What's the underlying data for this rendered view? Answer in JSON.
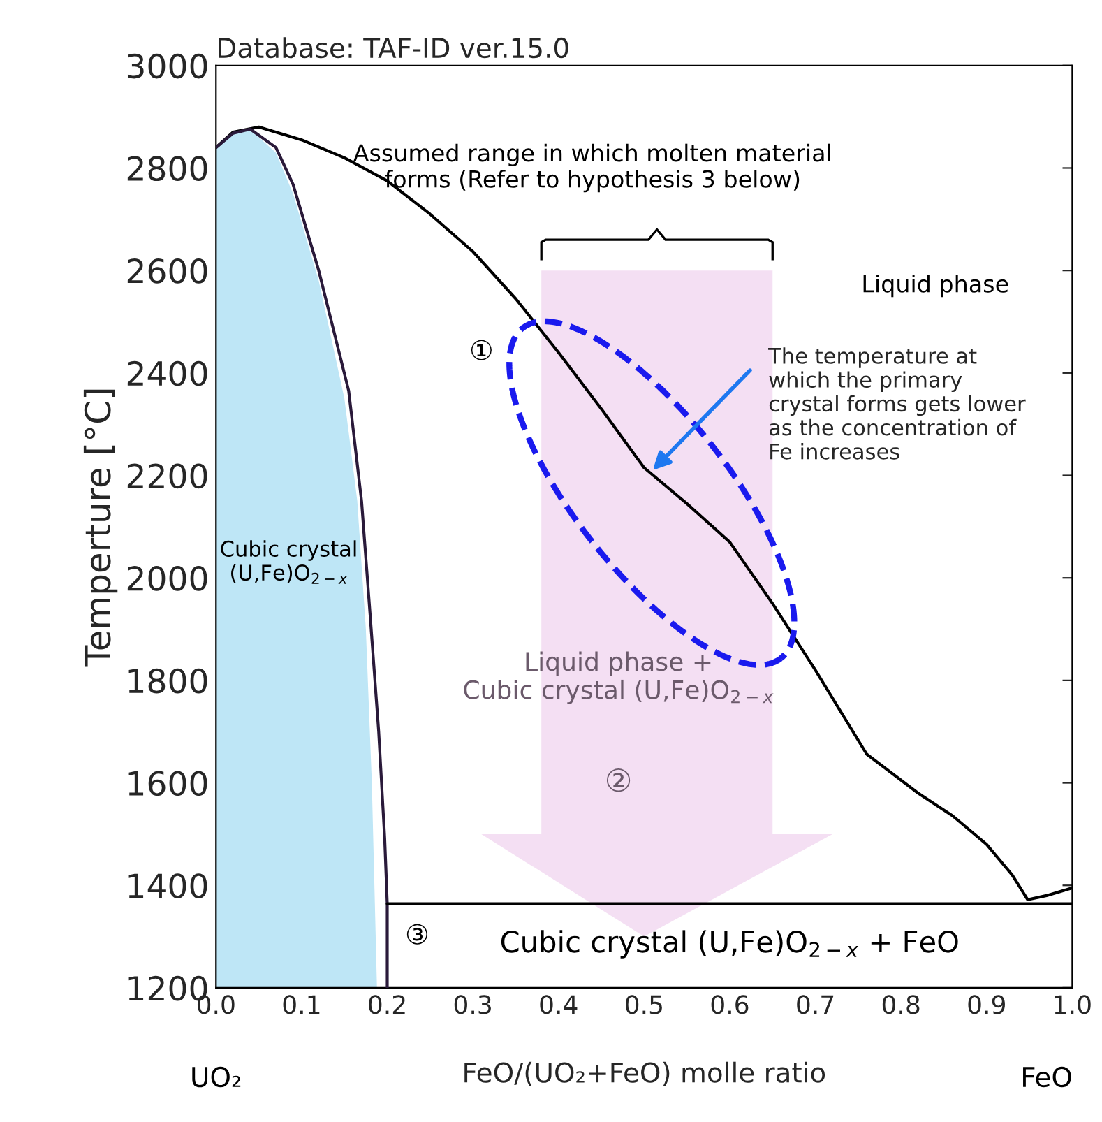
{
  "chart_data": {
    "type": "line",
    "title": "Database: TAF-ID ver.15.0",
    "xlabel": "FeO/(UO₂+FeO) molle ratio",
    "ylabel": "Temperture [°C]",
    "series": [
      {
        "type": "area",
        "color": "#bee6f6",
        "x": [
          0,
          0.02,
          0.04,
          0.07,
          0.09,
          0.12,
          0.15,
          0.165,
          0.175,
          0.182,
          0.188
        ],
        "values": [
          2840,
          2868,
          2875,
          2830,
          2750,
          2580,
          2350,
          2150,
          1900,
          1600,
          1200
        ]
      },
      {
        "color": "#000000",
        "x": [
          0,
          0.02,
          0.05,
          0.1,
          0.15,
          0.2,
          0.25,
          0.3,
          0.35,
          0.4,
          0.45,
          0.5,
          0.55,
          0.6,
          0.65,
          0.7,
          0.76,
          0.82,
          0.86,
          0.9,
          0.93,
          0.948,
          0.97,
          1.0
        ],
        "values": [
          2840,
          2870,
          2880,
          2855,
          2820,
          2775,
          2710,
          2637,
          2545,
          2440,
          2330,
          2215,
          2145,
          2070,
          1950,
          1820,
          1656,
          1580,
          1536,
          1480,
          1420,
          1372,
          1380,
          1395
        ]
      },
      {
        "color": "#2a1a3a",
        "x": [
          0,
          0.02,
          0.04,
          0.07,
          0.09,
          0.12,
          0.155,
          0.17,
          0.18,
          0.19,
          0.197,
          0.2,
          0.2
        ],
        "values": [
          2840,
          2868,
          2876,
          2840,
          2768,
          2600,
          2365,
          2150,
          1928,
          1700,
          1492,
          1364,
          1200
        ]
      },
      {
        "color": "#000000",
        "x": [
          0.2,
          1.0
        ],
        "values": [
          1364,
          1364
        ]
      }
    ],
    "xlim": [
      0,
      1
    ],
    "ylim": [
      1200,
      3000
    ],
    "xticks": [
      {
        "value": 0,
        "label": "0.0"
      },
      0.1,
      0.2,
      0.3,
      0.4,
      0.5,
      0.6,
      0.7,
      0.8,
      0.9,
      {
        "value": 1,
        "label": "1.0"
      }
    ],
    "yticks": [
      1200,
      1400,
      1600,
      1800,
      2000,
      2200,
      2400,
      2600,
      2800,
      3000
    ],
    "annotations": [
      "Cubic crystal\n(U,Fe)O$_{2−x}$",
      "Liquid phase",
      {
        "text": "The temperature at\nwhich the primary\ncrystal forms gets lower\nas the concentration of\nFe increases",
        "x": 0.51,
        "y": 2210
      },
      "Liquid phase +\nCubic crystal (U,Fe)O$_{2−x}$",
      "①",
      "②",
      "③",
      "Cubic crystal (U,Fe)O$_{2−x}$ + FeO",
      "Assumed range in which molten material\nforms (Refer to hypothesis 3 below)",
      "UO₂",
      "FeO"
    ],
    "grid": false,
    "legend": false
  }
}
